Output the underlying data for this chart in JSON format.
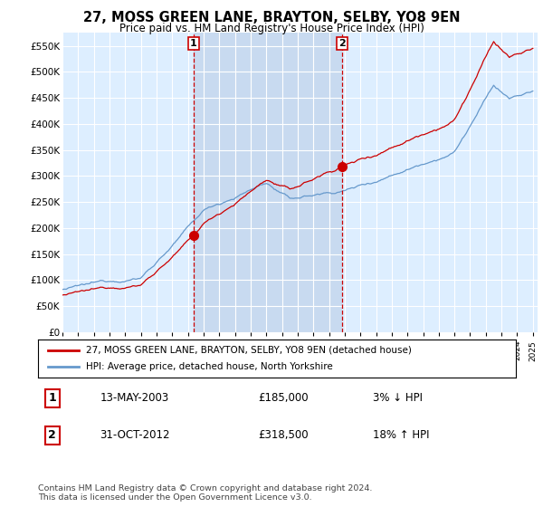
{
  "title": "27, MOSS GREEN LANE, BRAYTON, SELBY, YO8 9EN",
  "subtitle": "Price paid vs. HM Land Registry's House Price Index (HPI)",
  "plot_bg_color": "#ddeeff",
  "hpi_color": "#6699cc",
  "price_color": "#cc0000",
  "shade_color": "#c8daf0",
  "ylim": [
    0,
    575000
  ],
  "yticks": [
    0,
    50000,
    100000,
    150000,
    200000,
    250000,
    300000,
    350000,
    400000,
    450000,
    500000,
    550000
  ],
  "ytick_labels": [
    "£0",
    "£50K",
    "£100K",
    "£150K",
    "£200K",
    "£250K",
    "£300K",
    "£350K",
    "£400K",
    "£450K",
    "£500K",
    "£550K"
  ],
  "transaction1_date": 2003.36,
  "transaction1_price": 185000,
  "transaction1_label": "1",
  "transaction2_date": 2012.83,
  "transaction2_price": 318500,
  "transaction2_label": "2",
  "legend_line1": "27, MOSS GREEN LANE, BRAYTON, SELBY, YO8 9EN (detached house)",
  "legend_line2": "HPI: Average price, detached house, North Yorkshire",
  "table_row1_num": "1",
  "table_row1_date": "13-MAY-2003",
  "table_row1_price": "£185,000",
  "table_row1_hpi": "3% ↓ HPI",
  "table_row2_num": "2",
  "table_row2_date": "31-OCT-2012",
  "table_row2_price": "£318,500",
  "table_row2_hpi": "18% ↑ HPI",
  "footer": "Contains HM Land Registry data © Crown copyright and database right 2024.\nThis data is licensed under the Open Government Licence v3.0."
}
